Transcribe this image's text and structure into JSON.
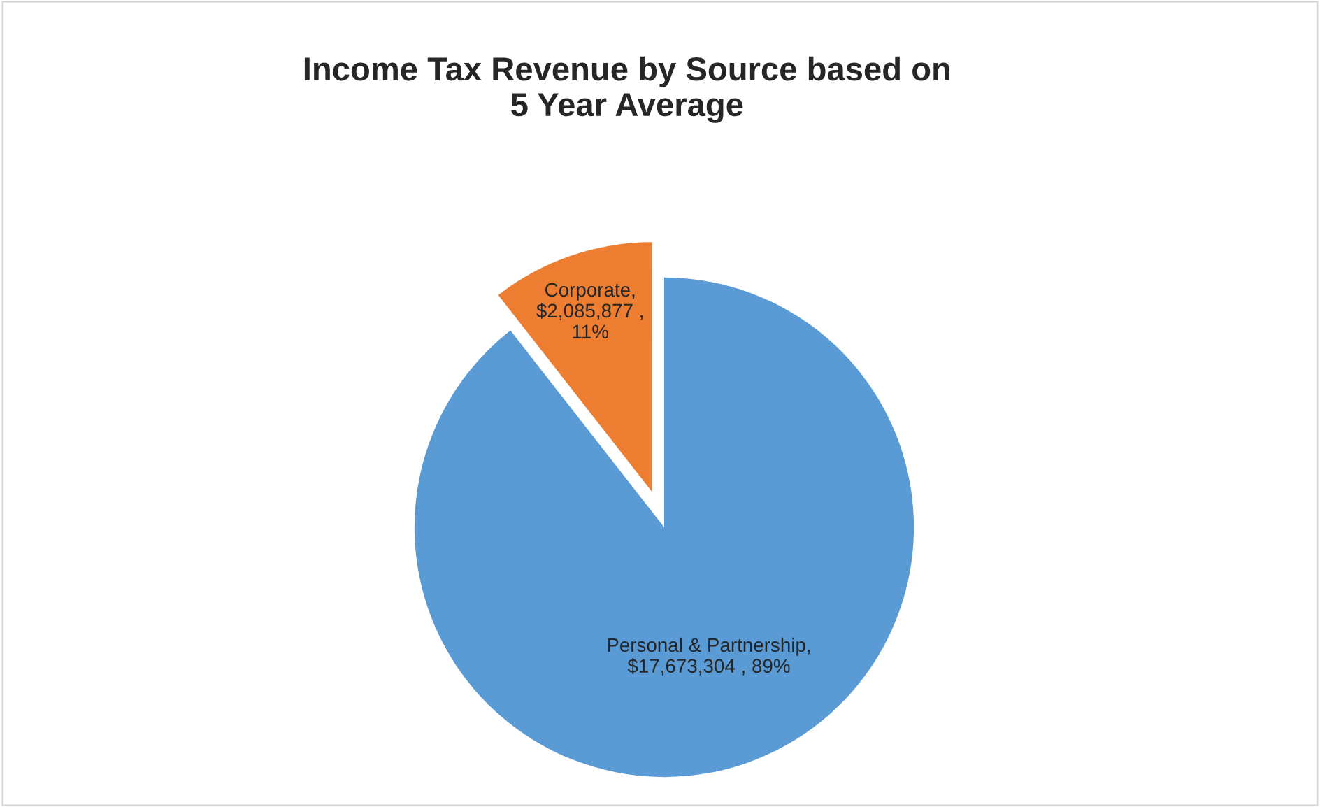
{
  "chart_data": {
    "type": "pie",
    "title": "Income Tax Revenue by Source based on\n5 Year Average",
    "categories": [
      "Personal & Partnership",
      "Corporate"
    ],
    "values": [
      17673304,
      2085877
    ],
    "colors": [
      "#5b9bd5",
      "#ed7d31"
    ],
    "value_labels": [
      ",\n$17,673,304 , 89%",
      ",\n$2,085,877 ,\n11%"
    ],
    "legend": false
  }
}
